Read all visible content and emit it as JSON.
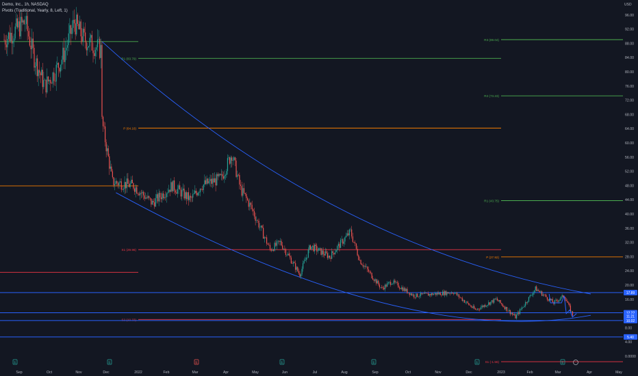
{
  "header": {
    "symbol_line": "Demo, Inc., 1h, NASDAQ",
    "indicator_line": "Pivots (Traditional, Yearly, 8, Left, 1)"
  },
  "colors": {
    "background": "#131722",
    "candle_up": "#26a69a",
    "candle_down": "#ef5350",
    "pivot_p": "#f57c00",
    "pivot_r": "#4caf50",
    "pivot_s": "#f23645",
    "drawing": "#2962ff"
  },
  "chart_data": {
    "type": "candlestick",
    "currency_label": "USD",
    "y_axis": {
      "min": 0,
      "max": 96,
      "ticks": [
        "96.00",
        "92.00",
        "88.00",
        "84.00",
        "80.00",
        "76.00",
        "72.00",
        "68.00",
        "64.00",
        "60.00",
        "56.00",
        "52.00",
        "48.00",
        "44.00",
        "40.00",
        "36.00",
        "32.00",
        "28.00",
        "24.00",
        "20.00",
        "16.00",
        "12.00",
        "8.00",
        "4.00",
        "0.0000"
      ]
    },
    "x_axis_labels": [
      "Sep",
      "Oct",
      "Nov",
      "Dec",
      "2022",
      "Feb",
      "Mar",
      "Apr",
      "May",
      "Jun",
      "Jul",
      "Aug",
      "Sep",
      "Oct",
      "Nov",
      "Dec",
      "2023",
      "Feb",
      "Mar",
      "Apr",
      "May"
    ],
    "price_path": [
      {
        "t": "Aug 2021",
        "v": 89
      },
      {
        "t": "early Sep 2021",
        "v": 94
      },
      {
        "t": "mid Sep 2021",
        "v": 84
      },
      {
        "t": "late Sep 2021",
        "v": 76
      },
      {
        "t": "early Oct 2021",
        "v": 80
      },
      {
        "t": "mid Oct 2021",
        "v": 85
      },
      {
        "t": "late Oct 2021",
        "v": 94
      },
      {
        "t": "early Nov 2021",
        "v": 89
      },
      {
        "t": "late Nov 2021",
        "v": 86
      },
      {
        "t": "late Nov 2021",
        "v": 66
      },
      {
        "t": "early Dec 2021",
        "v": 49
      },
      {
        "t": "late Dec 2021",
        "v": 48
      },
      {
        "t": "mid Jan 2022",
        "v": 43
      },
      {
        "t": "early Feb 2022",
        "v": 48
      },
      {
        "t": "late Feb 2022",
        "v": 44
      },
      {
        "t": "early Mar 2022",
        "v": 48
      },
      {
        "t": "late Mar 2022",
        "v": 50
      },
      {
        "t": "early Apr 2022",
        "v": 57
      },
      {
        "t": "mid Apr 2022",
        "v": 47
      },
      {
        "t": "late Apr 2022",
        "v": 42
      },
      {
        "t": "mid May 2022",
        "v": 30
      },
      {
        "t": "late May 2022",
        "v": 32
      },
      {
        "t": "mid Jun 2022",
        "v": 23
      },
      {
        "t": "late Jun 2022",
        "v": 31
      },
      {
        "t": "mid Jul 2022",
        "v": 28
      },
      {
        "t": "early Aug 2022",
        "v": 35
      },
      {
        "t": "mid Aug 2022",
        "v": 27
      },
      {
        "t": "early Sep 2022",
        "v": 19
      },
      {
        "t": "mid Sep 2022",
        "v": 21
      },
      {
        "t": "early Oct 2022",
        "v": 17
      },
      {
        "t": "mid Nov 2022",
        "v": 18
      },
      {
        "t": "early Dec 2022",
        "v": 13
      },
      {
        "t": "late Dec 2022",
        "v": 16
      },
      {
        "t": "mid Jan 2023",
        "v": 11
      },
      {
        "t": "early Feb 2023",
        "v": 19
      },
      {
        "t": "late Feb 2023",
        "v": 15
      },
      {
        "t": "early Mar 2023",
        "v": 17
      },
      {
        "t": "mid Mar 2023",
        "v": 11
      }
    ],
    "pivot_levels": [
      {
        "label": "R3 (89.04)",
        "value": 89.04,
        "kind": "r",
        "period": "2023"
      },
      {
        "label": "R2 (73.23)",
        "value": 73.23,
        "kind": "r",
        "period": "2023"
      },
      {
        "label": "R1 (43.75)",
        "value": 43.75,
        "kind": "r",
        "period": "2023"
      },
      {
        "label": "P (27.92)",
        "value": 27.92,
        "kind": "p",
        "period": "2023"
      },
      {
        "label": "S1 (-1.56)",
        "value": -1.56,
        "kind": "s",
        "period": "2023"
      },
      {
        "label": "R1 (83.79)",
        "value": 83.79,
        "kind": "r",
        "period": "2022"
      },
      {
        "label": "P (64.16)",
        "value": 64.16,
        "kind": "p",
        "period": "2022"
      },
      {
        "label": "S1 (29.96)",
        "value": 29.96,
        "kind": "s",
        "period": "2022"
      },
      {
        "label": "S2 (10.33)",
        "value": 10.33,
        "kind": "s",
        "period": "2022"
      }
    ],
    "prior_pivot_segments": [
      {
        "value": 88.5,
        "kind": "r",
        "period": "2021"
      },
      {
        "value": 47.9,
        "kind": "p",
        "period": "2021"
      },
      {
        "value": 23.6,
        "kind": "s",
        "period": "2021"
      }
    ],
    "horizontal_lines": [
      {
        "value": 17.89,
        "label": "17.89"
      },
      {
        "value": 12.22,
        "label": "12.22"
      },
      {
        "value": 10.02,
        "label": "10.02"
      },
      {
        "value": 5.4,
        "label": "5.40"
      }
    ],
    "last_price_labels": [
      "12.22",
      "11.21",
      "10.02"
    ],
    "channel": {
      "upper": [
        {
          "t": "late Nov 2021",
          "v": 88.5
        },
        {
          "t": "mid Mar 2023",
          "v": 17.5
        }
      ],
      "lower": [
        {
          "t": "early Dec 2021",
          "v": 46
        },
        {
          "t": "mid Mar 2023",
          "v": 11.5
        }
      ]
    },
    "event_markers": [
      "E",
      "E",
      "E",
      "E",
      "E",
      "E",
      "E"
    ],
    "grid": false,
    "legend_position": "top-left"
  }
}
